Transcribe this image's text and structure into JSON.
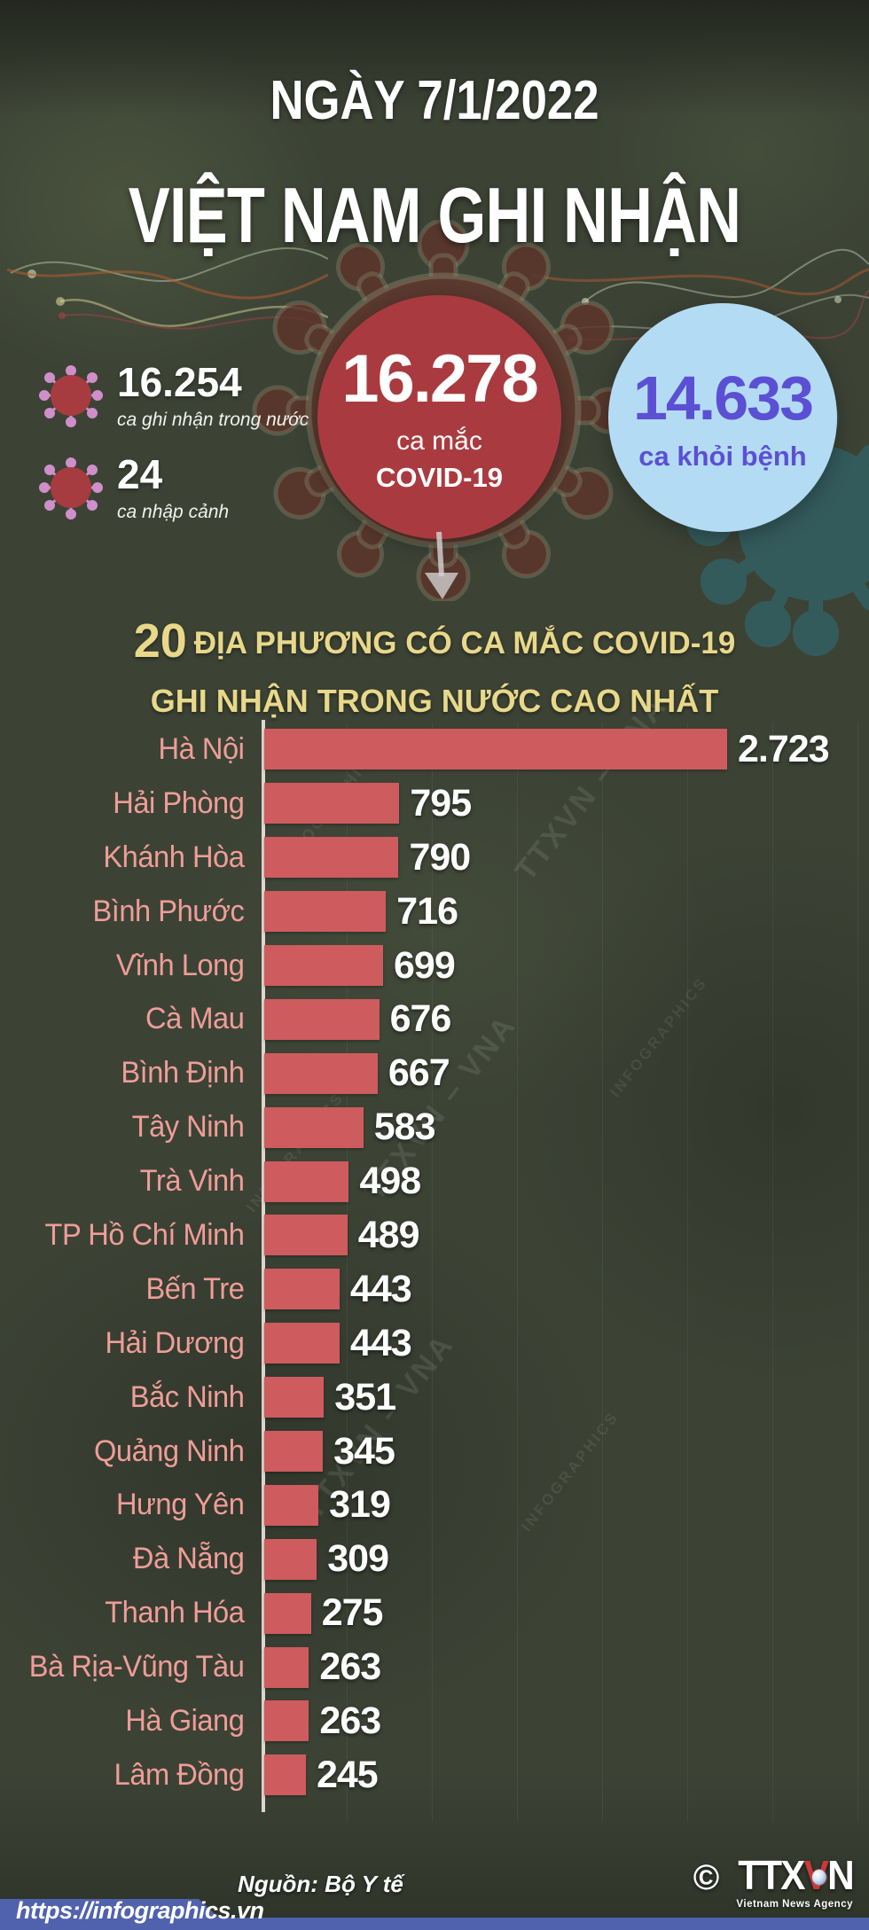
{
  "header": {
    "date_line": "NGÀY 7/1/2022",
    "title": "VIỆT NAM GHI NHẬN"
  },
  "stats": {
    "domestic": {
      "value": "16.254",
      "label": "ca ghi nhận trong nước"
    },
    "imported": {
      "value": "24",
      "label": "ca nhập cảnh"
    },
    "total": {
      "value": "16.278",
      "label_line1": "ca mắc",
      "label_line2": "COVID-19"
    },
    "recovered": {
      "value": "14.633",
      "label": "ca khỏi bệnh"
    }
  },
  "section_title": {
    "number": "20",
    "line1_rest": "ĐỊA PHƯƠNG CÓ CA MẮC COVID-19",
    "line2": "GHI NHẬN TRONG NƯỚC CAO NHẤT"
  },
  "chart_data": {
    "type": "bar",
    "orientation": "horizontal",
    "title": "20 địa phương có ca mắc COVID-19 ghi nhận trong nước cao nhất",
    "categories": [
      "Hà Nội",
      "Hải Phòng",
      "Khánh Hòa",
      "Bình Phước",
      "Vĩnh Long",
      "Cà Mau",
      "Bình Định",
      "Tây Ninh",
      "Trà Vinh",
      "TP Hồ Chí Minh",
      "Bến Tre",
      "Hải Dương",
      "Bắc Ninh",
      "Quảng Ninh",
      "Hưng Yên",
      "Đà Nẵng",
      "Thanh Hóa",
      "Bà Rịa-Vũng Tàu",
      "Hà Giang",
      "Lâm Đồng"
    ],
    "values": [
      2723,
      795,
      790,
      716,
      699,
      676,
      667,
      583,
      498,
      489,
      443,
      443,
      351,
      345,
      319,
      309,
      275,
      263,
      263,
      245
    ],
    "value_labels": [
      "2.723",
      "795",
      "790",
      "716",
      "699",
      "676",
      "667",
      "583",
      "498",
      "489",
      "443",
      "443",
      "351",
      "345",
      "319",
      "309",
      "275",
      "263",
      "263",
      "245"
    ],
    "xlim": [
      0,
      2850
    ],
    "gridlines": "faint vertical every 500",
    "bar_color": "#ce5b5e",
    "category_label_color": "#ef9d98",
    "value_label_color": "#ffffff"
  },
  "watermarks": {
    "primary": "TTXVN – VNA",
    "secondary": "INFOGRAPHICS"
  },
  "footer": {
    "source": "Nguồn: Bộ Y tế",
    "url": "https://infographics.vn",
    "copyright": "©",
    "logo_part1": "TTX",
    "logo_part2": "V",
    "logo_part3": "N",
    "logo_subtitle": "Vietnam News Agency"
  },
  "colors": {
    "background": "#3c4335",
    "accent_yellow": "#e9d88a",
    "infected_circle": "#a93b40",
    "recovered_circle": "#b4dbf4",
    "recovered_text": "#5b50d4",
    "bar": "#ce5b5e",
    "bar_label": "#ef9d98",
    "footer_strip": "#5061ae"
  }
}
